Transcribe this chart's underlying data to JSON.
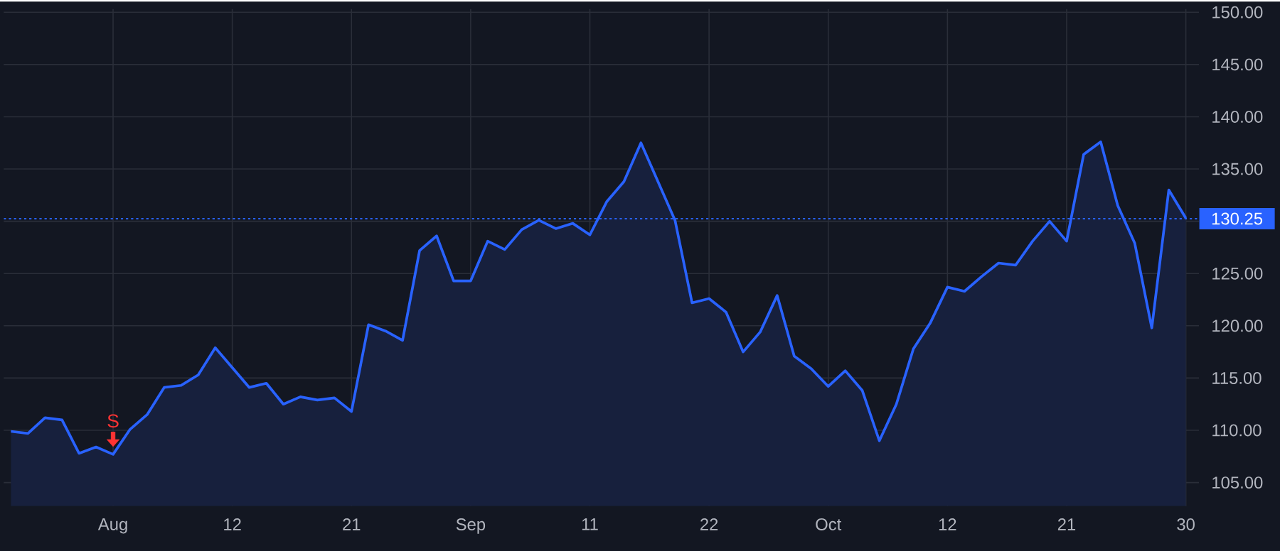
{
  "chart_data": {
    "type": "area",
    "categories": [
      null,
      null,
      null,
      null,
      null,
      null,
      "Aug",
      null,
      null,
      null,
      null,
      null,
      null,
      "12",
      null,
      null,
      null,
      null,
      null,
      null,
      "21",
      null,
      null,
      null,
      null,
      null,
      null,
      "Sep",
      null,
      null,
      null,
      null,
      null,
      null,
      "11",
      null,
      null,
      null,
      null,
      null,
      null,
      "22",
      null,
      null,
      null,
      null,
      null,
      null,
      "Oct",
      null,
      null,
      null,
      null,
      null,
      null,
      "12",
      null,
      null,
      null,
      null,
      null,
      null,
      "21",
      null,
      null,
      null,
      null,
      null,
      null,
      "30"
    ],
    "series": [
      {
        "color": "#2962ff",
        "values": [
          109.9,
          109.7,
          111.2,
          111.0,
          107.8,
          108.4,
          107.7,
          110.1,
          111.5,
          114.1,
          114.3,
          115.3,
          117.9,
          116.0,
          114.1,
          114.5,
          112.5,
          113.2,
          112.9,
          113.1,
          111.8,
          120.1,
          119.5,
          118.6,
          127.2,
          128.6,
          124.3,
          124.3,
          128.1,
          127.3,
          129.2,
          130.1,
          129.3,
          129.8,
          128.7,
          131.9,
          133.8,
          137.5,
          133.8,
          130.1,
          122.2,
          122.6,
          121.3,
          117.5,
          119.4,
          122.9,
          117.1,
          115.9,
          114.2,
          115.7,
          113.8,
          109.0,
          112.5,
          117.8,
          120.3,
          123.7,
          123.3,
          124.7,
          126.0,
          125.8,
          128.1,
          130.0,
          128.1,
          136.4,
          137.6,
          131.5,
          127.9,
          119.8,
          133.0,
          130.3
        ]
      }
    ],
    "ylim": [
      102.75,
      150.3
    ],
    "yticks": [
      {
        "value": 105,
        "label": "105.00"
      },
      {
        "value": 110,
        "label": "110.00"
      },
      {
        "value": 115,
        "label": "115.00"
      },
      {
        "value": 120,
        "label": "120.00"
      },
      {
        "value": 125,
        "label": "125.00"
      },
      {
        "value": 130,
        "label": null
      },
      {
        "value": 135,
        "label": "135.00"
      },
      {
        "value": 140,
        "label": "140.00"
      },
      {
        "value": 145,
        "label": "145.00"
      },
      {
        "value": 150,
        "label": "150.00"
      }
    ],
    "grid": true,
    "ref_lines": [
      {
        "axis": "y",
        "value": 130.25,
        "label": "130.25",
        "color": "#2962ff",
        "line_style": "dotted"
      }
    ],
    "annotations": [
      {
        "text": "S",
        "x": "Aug",
        "y": 107.7
      }
    ]
  }
}
